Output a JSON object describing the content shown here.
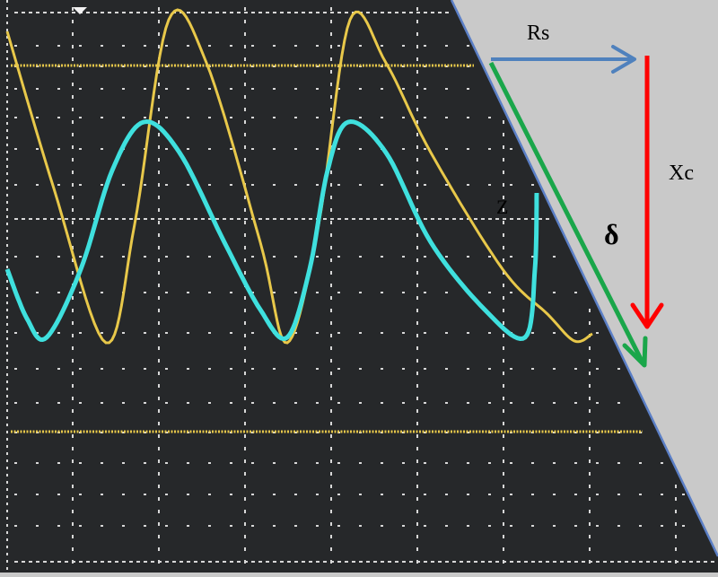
{
  "labels": {
    "rs": "Rs",
    "xc": "Xc",
    "z": "Z",
    "delta": "δ"
  },
  "colors": {
    "background": "#c9c9c9",
    "screen": "#26282a",
    "screen_border": "#5b7fc6",
    "grid_dot": "#d8d8d8",
    "trace_yellow": "#e8c84a",
    "trace_cyan": "#3fe0de",
    "vector_rs": "#4f81bd",
    "vector_xc": "#ff0000",
    "vector_z": "#1aa64a",
    "text": "#000000"
  }
}
